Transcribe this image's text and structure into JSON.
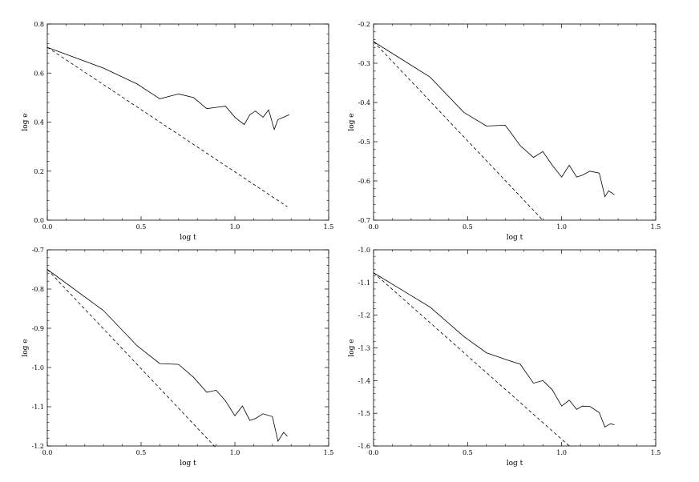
{
  "figure": {
    "panel_count": 4
  },
  "chart_data": [
    {
      "type": "line",
      "xlabel": "log t",
      "ylabel": "log e",
      "xlim": [
        0.0,
        1.5
      ],
      "ylim": [
        0.0,
        0.8
      ],
      "xticks": [
        0.0,
        0.5,
        1.0,
        1.5
      ],
      "xtick_labels": [
        "0.0",
        "0.5",
        "1.0",
        "1.5"
      ],
      "yticks": [
        0.0,
        0.2,
        0.4,
        0.6,
        0.8
      ],
      "ytick_labels": [
        "0.0",
        "0.2",
        "0.4",
        "0.6",
        "0.8"
      ],
      "grid": false,
      "series": [
        {
          "style": "solid",
          "x": [
            0.0,
            0.3,
            0.48,
            0.6,
            0.7,
            0.78,
            0.85,
            0.9,
            0.95,
            1.0,
            1.05,
            1.08,
            1.11,
            1.15,
            1.18,
            1.21,
            1.23,
            1.26,
            1.29
          ],
          "y": [
            0.705,
            0.62,
            0.555,
            0.495,
            0.515,
            0.5,
            0.455,
            0.46,
            0.465,
            0.42,
            0.39,
            0.43,
            0.445,
            0.42,
            0.45,
            0.37,
            0.41,
            0.42,
            0.43
          ]
        },
        {
          "style": "dashed",
          "x": [
            0.0,
            1.28
          ],
          "y": [
            0.705,
            0.055
          ]
        }
      ]
    },
    {
      "type": "line",
      "xlabel": "log t",
      "ylabel": "log e",
      "xlim": [
        0.0,
        1.5
      ],
      "ylim": [
        -0.7,
        -0.2
      ],
      "xticks": [
        0.0,
        0.5,
        1.0,
        1.5
      ],
      "xtick_labels": [
        "0.0",
        "0.5",
        "1.0",
        "1.5"
      ],
      "yticks": [
        -0.7,
        -0.6,
        -0.5,
        -0.4,
        -0.3,
        -0.2
      ],
      "ytick_labels": [
        "-0.7",
        "-0.6",
        "-0.5",
        "-0.4",
        "-0.3",
        "-0.2"
      ],
      "grid": false,
      "series": [
        {
          "style": "solid",
          "x": [
            0.0,
            0.3,
            0.48,
            0.6,
            0.7,
            0.78,
            0.85,
            0.9,
            0.95,
            1.0,
            1.04,
            1.08,
            1.11,
            1.15,
            1.2,
            1.23,
            1.25,
            1.28
          ],
          "y": [
            -0.245,
            -0.335,
            -0.425,
            -0.46,
            -0.458,
            -0.51,
            -0.54,
            -0.525,
            -0.56,
            -0.59,
            -0.56,
            -0.59,
            -0.585,
            -0.575,
            -0.58,
            -0.64,
            -0.625,
            -0.635
          ]
        },
        {
          "style": "dashed",
          "x": [
            0.0,
            0.9
          ],
          "y": [
            -0.245,
            -0.7
          ]
        }
      ]
    },
    {
      "type": "line",
      "xlabel": "log t",
      "ylabel": "log e",
      "xlim": [
        0.0,
        1.5
      ],
      "ylim": [
        -1.2,
        -0.7
      ],
      "xticks": [
        0.0,
        0.5,
        1.0,
        1.5
      ],
      "xtick_labels": [
        "0.0",
        "0.5",
        "1.0",
        "1.5"
      ],
      "yticks": [
        -1.2,
        -1.1,
        -1.0,
        -0.9,
        -0.8,
        -0.7
      ],
      "ytick_labels": [
        "-1.2",
        "-1.1",
        "-1.0",
        "-0.9",
        "-0.8",
        "-0.7"
      ],
      "grid": false,
      "series": [
        {
          "style": "solid",
          "x": [
            0.0,
            0.3,
            0.48,
            0.6,
            0.7,
            0.78,
            0.85,
            0.9,
            0.95,
            1.0,
            1.04,
            1.08,
            1.11,
            1.15,
            1.2,
            1.23,
            1.26,
            1.28
          ],
          "y": [
            -0.75,
            -0.855,
            -0.945,
            -0.99,
            -0.992,
            -1.025,
            -1.063,
            -1.058,
            -1.085,
            -1.123,
            -1.098,
            -1.135,
            -1.13,
            -1.118,
            -1.125,
            -1.188,
            -1.165,
            -1.175
          ]
        },
        {
          "style": "dashed",
          "x": [
            0.0,
            0.9
          ],
          "y": [
            -0.75,
            -1.205
          ]
        }
      ]
    },
    {
      "type": "line",
      "xlabel": "log t",
      "ylabel": "log e",
      "xlim": [
        0.0,
        1.5
      ],
      "ylim": [
        -1.6,
        -1.0
      ],
      "xticks": [
        0.0,
        0.5,
        1.0,
        1.5
      ],
      "xtick_labels": [
        "0.0",
        "0.5",
        "1.0",
        "1.5"
      ],
      "yticks": [
        -1.6,
        -1.5,
        -1.4,
        -1.3,
        -1.2,
        -1.1,
        -1.0
      ],
      "ytick_labels": [
        "-1.6",
        "-1.5",
        "-1.4",
        "-1.3",
        "-1.2",
        "-1.1",
        "-1.0"
      ],
      "grid": false,
      "series": [
        {
          "style": "solid",
          "x": [
            0.0,
            0.3,
            0.48,
            0.6,
            0.7,
            0.78,
            0.85,
            0.9,
            0.95,
            1.0,
            1.04,
            1.08,
            1.11,
            1.15,
            1.2,
            1.23,
            1.26,
            1.28
          ],
          "y": [
            -1.07,
            -1.175,
            -1.265,
            -1.315,
            -1.335,
            -1.35,
            -1.408,
            -1.4,
            -1.428,
            -1.478,
            -1.46,
            -1.488,
            -1.478,
            -1.479,
            -1.498,
            -1.542,
            -1.532,
            -1.535
          ]
        },
        {
          "style": "dashed",
          "x": [
            0.0,
            1.05
          ],
          "y": [
            -1.07,
            -1.605
          ]
        }
      ]
    }
  ]
}
